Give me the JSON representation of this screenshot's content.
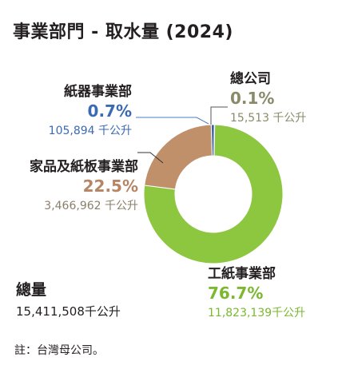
{
  "title": "事業部門 - 取水量 (2024)",
  "chart_data": {
    "type": "donut",
    "title": "事業部門 - 取水量 (2024)",
    "unit": "千公升",
    "total": {
      "label": "總量",
      "amount": "15,411,508千公升"
    },
    "slices": [
      {
        "name": "總公司",
        "pct_label": "0.1%",
        "amount_label": "15,513 千公升",
        "value": 0.1,
        "color": "#1f4e79",
        "pct_color": "#8a8a6a",
        "amt_color": "#8a8a6a"
      },
      {
        "name": "工紙事業部",
        "pct_label": "76.7%",
        "amount_label": "11,823,139千公升",
        "value": 76.7,
        "color": "#8dc63f",
        "pct_color": "#7ab82e",
        "amt_color": "#7ab82e"
      },
      {
        "name": "家品及紙板事業部",
        "pct_label": "22.5%",
        "amount_label": "3,466,962 千公升",
        "value": 22.5,
        "color": "#c0906a",
        "pct_color": "#b58566",
        "amt_color": "#8a7f6a"
      },
      {
        "name": "紙器事業部",
        "pct_label": "0.7%",
        "amount_label": "105,894 千公升",
        "value": 0.7,
        "color": "#3a5fa8",
        "pct_color": "#3a6ab4",
        "amt_color": "#3a6ab4"
      }
    ]
  },
  "note": "註：台灣母公司。"
}
